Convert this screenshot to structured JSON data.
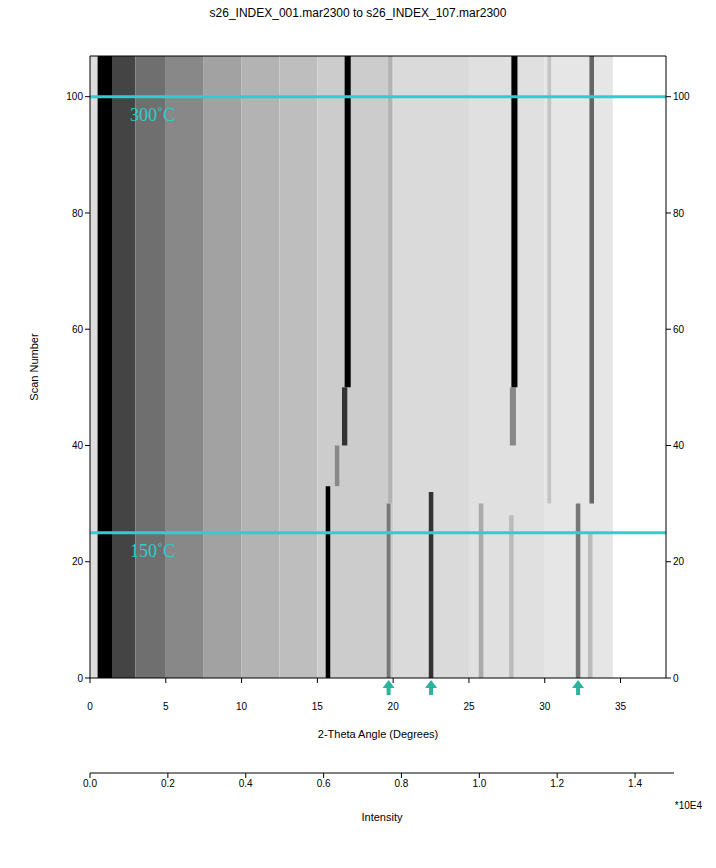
{
  "chart_data": {
    "type": "heatmap",
    "title": "s26_INDEX_001.mar2300 to s26_INDEX_107.mar2300",
    "x_label": "2-Theta Angle (Degrees)",
    "y_label": "Scan Number",
    "xlim": [
      0,
      38
    ],
    "xticks": [
      0,
      5,
      10,
      15,
      20,
      25,
      30,
      35
    ],
    "ylim": [
      0,
      107
    ],
    "yticks": [
      0,
      20,
      40,
      60,
      80,
      100
    ],
    "background": {
      "bins": [
        0,
        0.5,
        1.5,
        3,
        5,
        7.5,
        10,
        12.5,
        15,
        20,
        25,
        30,
        34.5,
        38
      ],
      "intensity": [
        0.2,
        1.5,
        1.1,
        0.85,
        0.7,
        0.55,
        0.45,
        0.38,
        0.3,
        0.22,
        0.18,
        0.15,
        0
      ]
    },
    "peaks": [
      {
        "two_theta": 15.7,
        "width": 0.3,
        "scan_start": 0,
        "scan_end": 33,
        "intensity": 1.5
      },
      {
        "two_theta": 19.7,
        "width": 0.25,
        "scan_start": 0,
        "scan_end": 30,
        "intensity": 0.8
      },
      {
        "two_theta": 22.5,
        "width": 0.3,
        "scan_start": 0,
        "scan_end": 32,
        "intensity": 1.2
      },
      {
        "two_theta": 25.8,
        "width": 0.3,
        "scan_start": 0,
        "scan_end": 30,
        "intensity": 0.5
      },
      {
        "two_theta": 27.8,
        "width": 0.3,
        "scan_start": 0,
        "scan_end": 28,
        "intensity": 0.4
      },
      {
        "two_theta": 32.2,
        "width": 0.3,
        "scan_start": 0,
        "scan_end": 30,
        "intensity": 0.8
      },
      {
        "two_theta": 33.0,
        "width": 0.3,
        "scan_start": 0,
        "scan_end": 25,
        "intensity": 0.4
      },
      {
        "two_theta": 16.3,
        "width": 0.3,
        "scan_start": 33,
        "scan_end": 40,
        "intensity": 0.7
      },
      {
        "two_theta": 16.8,
        "width": 0.35,
        "scan_start": 40,
        "scan_end": 50,
        "intensity": 1.2
      },
      {
        "two_theta": 27.9,
        "width": 0.4,
        "scan_start": 40,
        "scan_end": 50,
        "intensity": 0.7
      },
      {
        "two_theta": 17.0,
        "width": 0.4,
        "scan_start": 50,
        "scan_end": 107,
        "intensity": 1.5
      },
      {
        "two_theta": 19.8,
        "width": 0.25,
        "scan_start": 30,
        "scan_end": 107,
        "intensity": 0.45
      },
      {
        "two_theta": 28.0,
        "width": 0.4,
        "scan_start": 50,
        "scan_end": 107,
        "intensity": 1.5
      },
      {
        "two_theta": 33.1,
        "width": 0.3,
        "scan_start": 30,
        "scan_end": 107,
        "intensity": 0.9
      },
      {
        "two_theta": 30.3,
        "width": 0.25,
        "scan_start": 30,
        "scan_end": 107,
        "intensity": 0.35
      }
    ],
    "annotations": [
      {
        "text": "300˚C",
        "scan": 100
      },
      {
        "text": "150˚C",
        "scan": 25
      }
    ],
    "arrows": [
      19.7,
      22.5,
      32.2
    ],
    "colorbar": {
      "label": "Intensity",
      "multiplier": "*10E4",
      "range": [
        0,
        1.5
      ],
      "ticks": [
        {
          "value": 0,
          "label": "0.0"
        },
        {
          "value": 0.2,
          "label": "0.2"
        },
        {
          "value": 0.4,
          "label": "0.4"
        },
        {
          "value": 0.6,
          "label": "0.6"
        },
        {
          "value": 0.8,
          "label": "0.8"
        },
        {
          "value": 1.0,
          "label": "1.0"
        },
        {
          "value": 1.2,
          "label": "1.2"
        },
        {
          "value": 1.4,
          "label": "1.4"
        }
      ]
    }
  }
}
